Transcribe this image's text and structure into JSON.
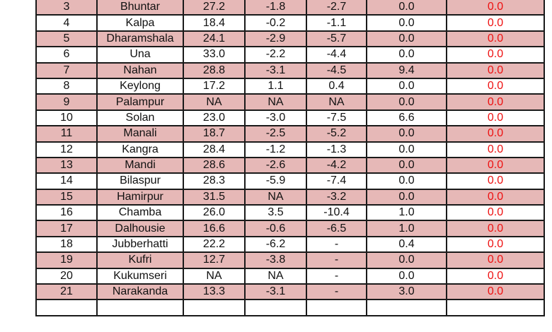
{
  "table": {
    "colors": {
      "shaded_row": "#e6b8b7",
      "plain_row": "#ffffff",
      "last_col_text": "#ee1111",
      "border": "#1a1a1a"
    },
    "rows": [
      [
        "3",
        "Bhuntar",
        "27.2",
        "-1.8",
        "-2.7",
        "0.0",
        "0.0"
      ],
      [
        "4",
        "Kalpa",
        "18.4",
        "-0.2",
        "-1.1",
        "0.0",
        "0.0"
      ],
      [
        "5",
        "Dharamshala",
        "24.1",
        "-2.9",
        "-5.7",
        "0.0",
        "0.0"
      ],
      [
        "6",
        "Una",
        "33.0",
        "-2.2",
        "-4.4",
        "0.0",
        "0.0"
      ],
      [
        "7",
        "Nahan",
        "28.8",
        "-3.1",
        "-4.5",
        "9.4",
        "0.0"
      ],
      [
        "8",
        "Keylong",
        "17.2",
        "1.1",
        "0.4",
        "0.0",
        "0.0"
      ],
      [
        "9",
        "Palampur",
        "NA",
        "NA",
        "NA",
        "0.0",
        "0.0"
      ],
      [
        "10",
        "Solan",
        "23.0",
        "-3.0",
        "-7.5",
        "6.6",
        "0.0"
      ],
      [
        "11",
        "Manali",
        "18.7",
        "-2.5",
        "-5.2",
        "0.0",
        "0.0"
      ],
      [
        "12",
        "Kangra",
        "28.4",
        "-1.2",
        "-1.3",
        "0.0",
        "0.0"
      ],
      [
        "13",
        "Mandi",
        "28.6",
        "-2.6",
        "-4.2",
        "0.0",
        "0.0"
      ],
      [
        "14",
        "Bilaspur",
        "28.3",
        "-5.9",
        "-7.4",
        "0.0",
        "0.0"
      ],
      [
        "15",
        "Hamirpur",
        "31.5",
        "NA",
        "-3.2",
        "0.0",
        "0.0"
      ],
      [
        "16",
        "Chamba",
        "26.0",
        "3.5",
        "-10.4",
        "1.0",
        "0.0"
      ],
      [
        "17",
        "Dalhousie",
        "16.6",
        "-0.6",
        "-6.5",
        "1.0",
        "0.0"
      ],
      [
        "18",
        "Jubberhatti",
        "22.2",
        "-6.2",
        "-",
        "0.4",
        "0.0"
      ],
      [
        "19",
        "Kufri",
        "12.7",
        "-3.8",
        "-",
        "0.0",
        "0.0"
      ],
      [
        "20",
        "Kukumseri",
        "NA",
        "NA",
        "-",
        "0.0",
        "0.0"
      ],
      [
        "21",
        "Narakanda",
        "13.3",
        "-3.1",
        "-",
        "3.0",
        "0.0"
      ],
      [
        "",
        "",
        "",
        "",
        "",
        "",
        ""
      ]
    ]
  }
}
